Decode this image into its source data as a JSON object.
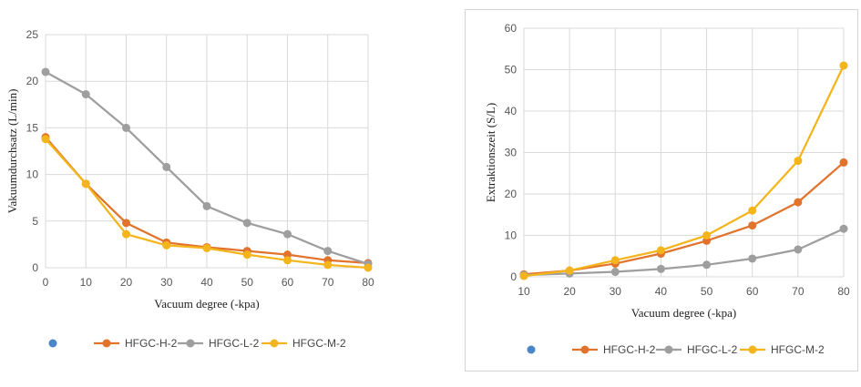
{
  "chart_data": [
    {
      "type": "line",
      "x": [
        0,
        10,
        20,
        30,
        40,
        50,
        60,
        70,
        80
      ],
      "xlabel": "Vacuum degree (-kpa)",
      "ylabel": "Vakuumdurchsatz (L/min)",
      "xlim": [
        0,
        80
      ],
      "ylim": [
        0,
        25
      ],
      "yticks": [
        0,
        5,
        10,
        15,
        20,
        25
      ],
      "grid": true,
      "legend_position": "bottom",
      "legend_extra_marker": {
        "color": "#4a86c5"
      },
      "series": [
        {
          "name": "HFGC-H-2",
          "color": "#e1732c",
          "values": [
            14.0,
            9.0,
            4.8,
            2.7,
            2.2,
            1.8,
            1.4,
            0.8,
            0.5
          ]
        },
        {
          "name": "HFGC-L-2",
          "color": "#9e9e9e",
          "values": [
            21.0,
            18.6,
            15.0,
            10.8,
            6.6,
            4.8,
            3.6,
            1.8,
            0.4
          ]
        },
        {
          "name": "HFGC-M-2",
          "color": "#f3b51b",
          "values": [
            13.8,
            9.0,
            3.6,
            2.4,
            2.1,
            1.4,
            0.8,
            0.3,
            0.0
          ]
        }
      ]
    },
    {
      "type": "line",
      "x": [
        10,
        20,
        30,
        40,
        50,
        60,
        70,
        80
      ],
      "xlabel": "Vacuum degree (-kpa)",
      "ylabel": "Extraktionszeit (S/L)",
      "xlim": [
        10,
        80
      ],
      "ylim": [
        0,
        60
      ],
      "yticks": [
        0,
        10,
        20,
        30,
        40,
        50,
        60
      ],
      "grid": true,
      "legend_position": "bottom",
      "legend_extra_marker": {
        "color": "#4a86c5"
      },
      "series": [
        {
          "name": "HFGC-H-2",
          "color": "#e1732c",
          "values": [
            0.6,
            1.5,
            3.2,
            5.6,
            8.7,
            12.4,
            18.0,
            27.6
          ]
        },
        {
          "name": "HFGC-L-2",
          "color": "#9e9e9e",
          "values": [
            0.4,
            0.8,
            1.2,
            1.9,
            2.9,
            4.4,
            6.6,
            11.6
          ]
        },
        {
          "name": "HFGC-M-2",
          "color": "#f3b51b",
          "values": [
            0.2,
            1.5,
            4.0,
            6.4,
            10.0,
            16.0,
            28.0,
            51.0
          ]
        }
      ]
    }
  ]
}
